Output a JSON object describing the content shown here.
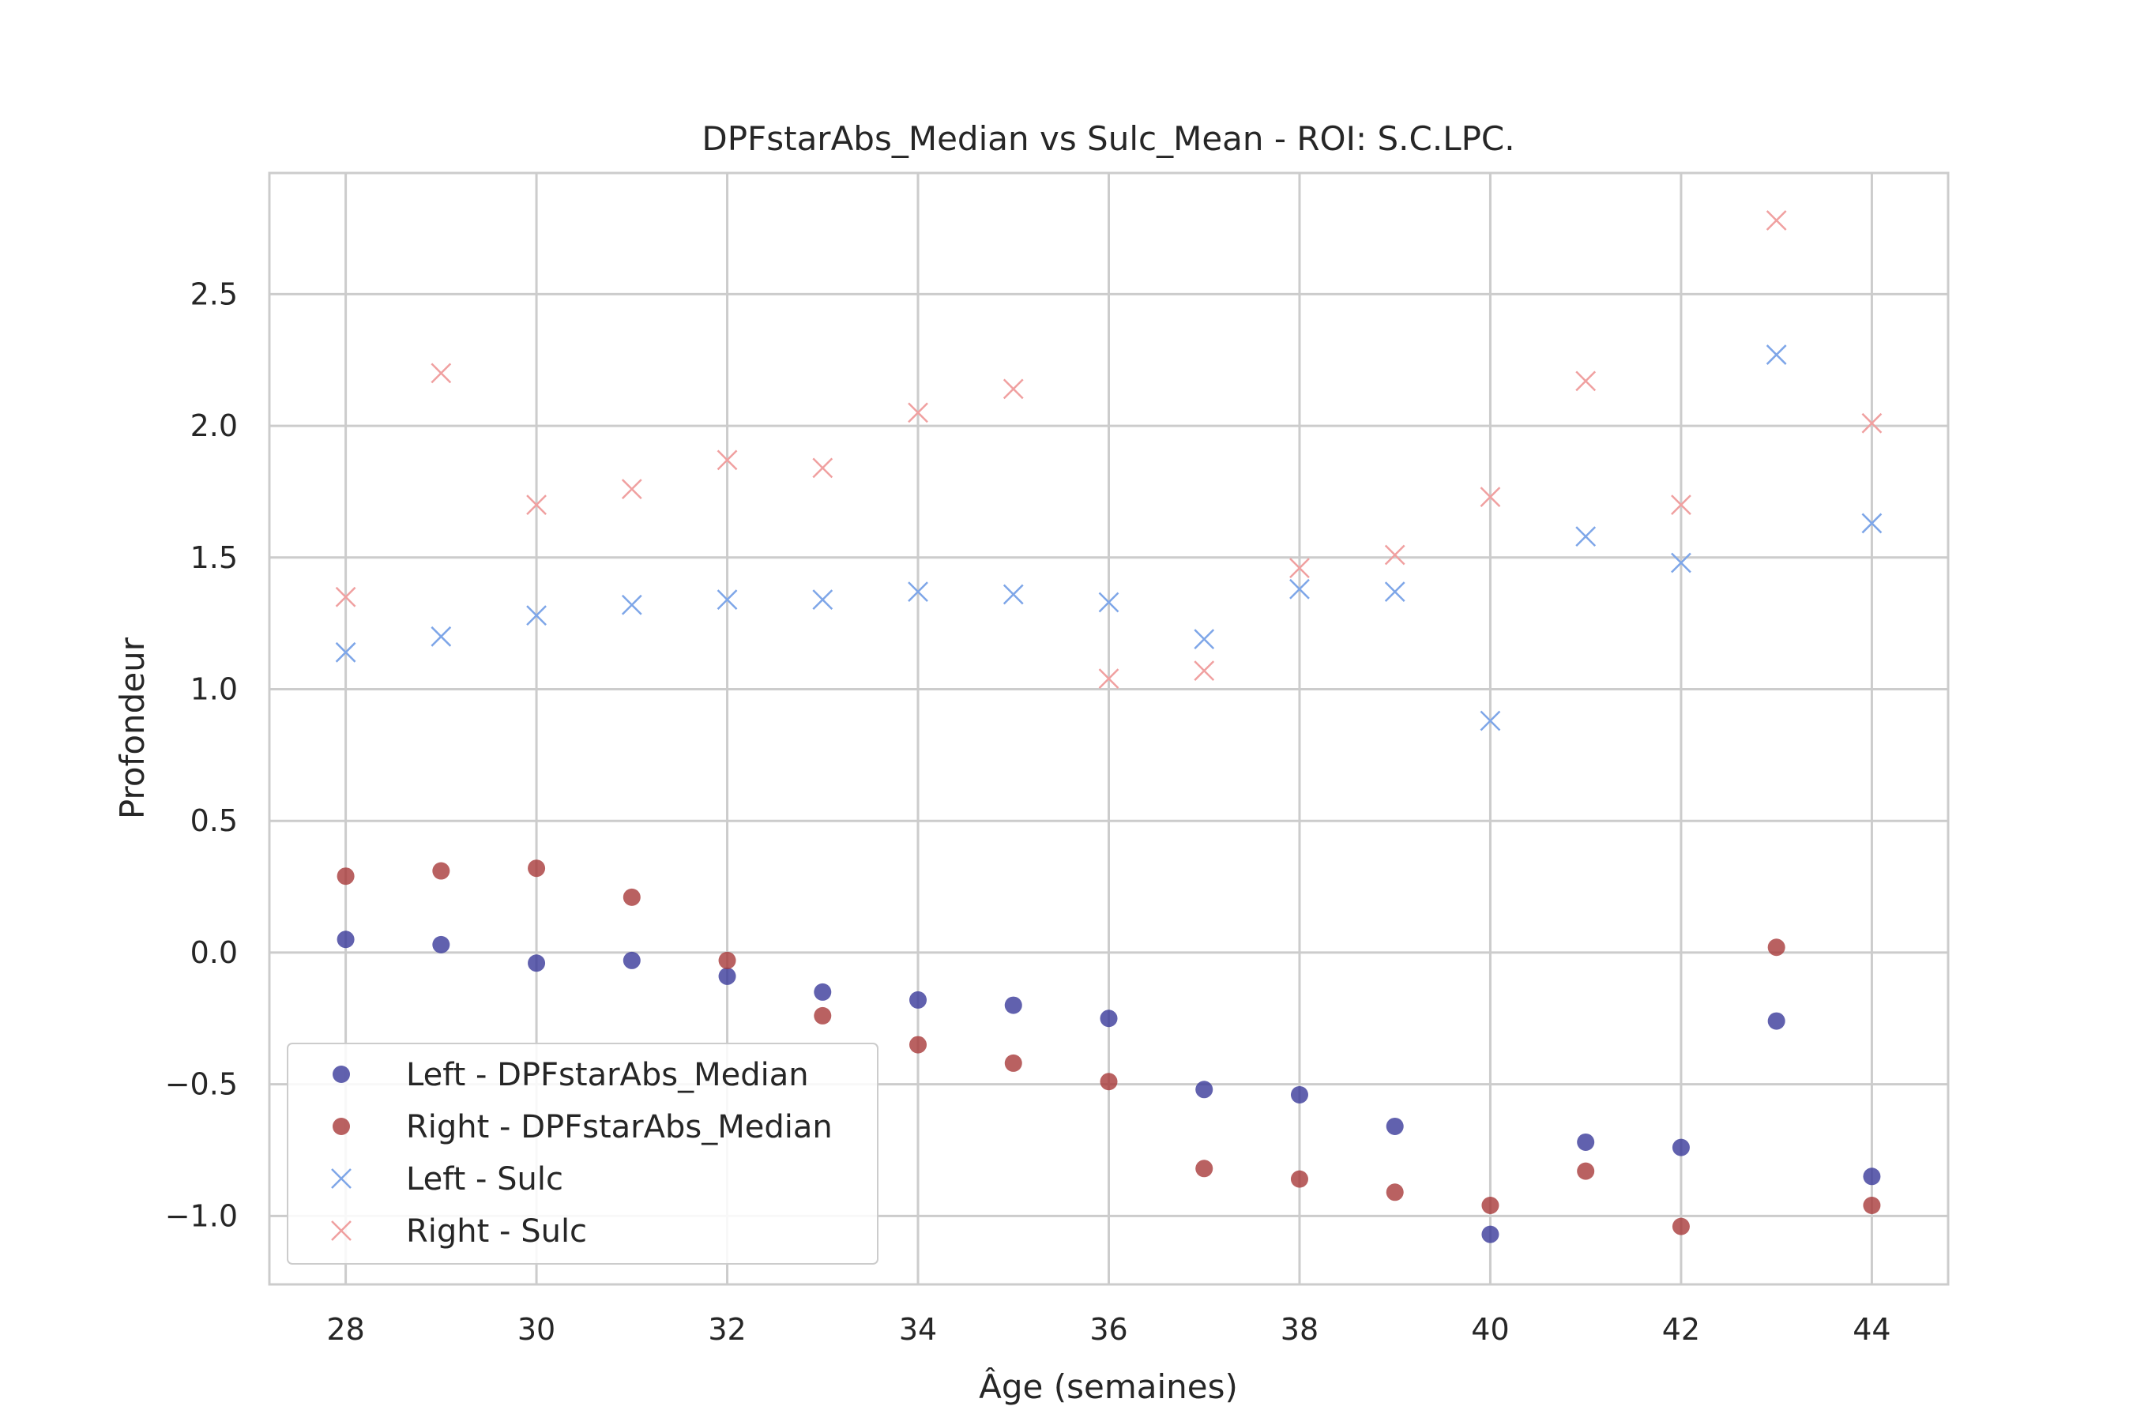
{
  "chart_data": {
    "type": "scatter",
    "title": "DPFstarAbs_Median vs Sulc_Mean - ROI: S.C.LPC.",
    "xlabel": "Âge (semaines)",
    "ylabel": "Profondeur",
    "xlim": [
      27.2,
      44.8
    ],
    "ylim": [
      -1.26,
      2.96
    ],
    "xticks": [
      28,
      30,
      32,
      34,
      36,
      38,
      40,
      42,
      44
    ],
    "xtick_labels": [
      "28",
      "30",
      "32",
      "34",
      "36",
      "38",
      "40",
      "42",
      "44"
    ],
    "yticks": [
      -1.0,
      -0.5,
      0.0,
      0.5,
      1.0,
      1.5,
      2.0,
      2.5
    ],
    "ytick_labels": [
      "−1.0",
      "−0.5",
      "0.0",
      "0.5",
      "1.0",
      "1.5",
      "2.0",
      "2.5"
    ],
    "grid": true,
    "legend_position": "lower-left",
    "x": [
      28,
      29,
      30,
      31,
      32,
      33,
      34,
      35,
      36,
      37,
      38,
      39,
      40,
      41,
      42,
      43,
      44
    ],
    "series": [
      {
        "name": "Left - DPFstarAbs_Median",
        "marker": "circle",
        "color": "#3a3a9a",
        "values": [
          0.05,
          0.03,
          -0.04,
          -0.03,
          -0.09,
          -0.15,
          -0.18,
          -0.2,
          -0.25,
          -0.52,
          -0.54,
          -0.66,
          -1.07,
          -0.72,
          -0.74,
          -0.26,
          -0.85
        ]
      },
      {
        "name": "Right - DPFstarAbs_Median",
        "marker": "circle",
        "color": "#a83a3a",
        "values": [
          0.29,
          0.31,
          0.32,
          0.21,
          -0.03,
          -0.24,
          -0.35,
          -0.42,
          -0.49,
          -0.82,
          -0.86,
          -0.91,
          -0.96,
          -0.83,
          -1.04,
          0.02,
          -0.96
        ]
      },
      {
        "name": "Left - Sulc",
        "marker": "x",
        "color": "#7ea6e8",
        "values": [
          1.14,
          1.2,
          1.28,
          1.32,
          1.34,
          1.34,
          1.37,
          1.36,
          1.33,
          1.19,
          1.38,
          1.37,
          0.88,
          1.58,
          1.48,
          2.27,
          1.63
        ]
      },
      {
        "name": "Right - Sulc",
        "marker": "x",
        "color": "#f0a0a0",
        "values": [
          1.35,
          2.2,
          1.7,
          1.76,
          1.87,
          1.84,
          2.05,
          2.14,
          1.04,
          1.07,
          1.46,
          1.51,
          1.73,
          2.17,
          1.7,
          2.78,
          2.01
        ]
      }
    ]
  }
}
